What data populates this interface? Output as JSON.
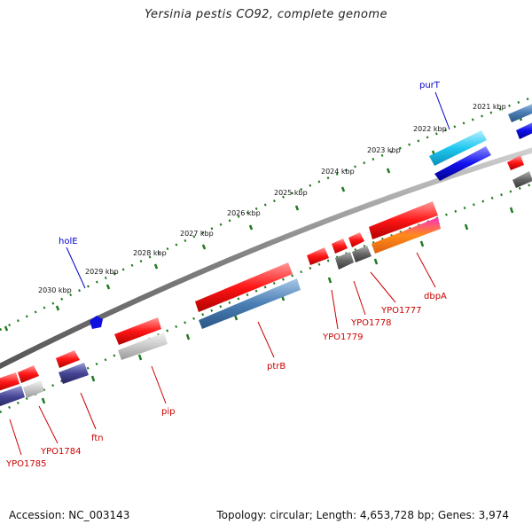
{
  "title": "Yersinia pestis CO92, complete genome",
  "footer": {
    "accession": "Accession: NC_003143",
    "topology": "Topology: circular; Length: 4,653,728 bp; Genes: 3,974"
  },
  "kbp_labels": [
    "2021 kbp",
    "2022 kbp",
    "2023 kbp",
    "2024 kbp",
    "2025 kbp",
    "2026 kbp",
    "2027 kbp",
    "2028 kbp",
    "2029 kbp",
    "2030 kbp"
  ],
  "gene_labels": {
    "purT": "purT",
    "holE": "holE",
    "dbpA": "dbpA",
    "YPO1777": "YPO1777",
    "YPO1778": "YPO1778",
    "YPO1779": "YPO1779",
    "ptrB": "ptrB",
    "pip": "pip",
    "ftn": "ftn",
    "YPO1784": "YPO1784",
    "YPO1785": "YPO1785"
  },
  "colors": {
    "red_gene": "#e01010",
    "blue_gene": "#1010e0",
    "steel_gene": "#4a7fb5",
    "cyan_gene": "#20c8f0",
    "grey_gene": "#666666",
    "light_grey_gene": "#c0c0c0",
    "navy_gene": "#3c3c8c",
    "tick_green": "#1f7a1f",
    "backbone": "#777777"
  }
}
